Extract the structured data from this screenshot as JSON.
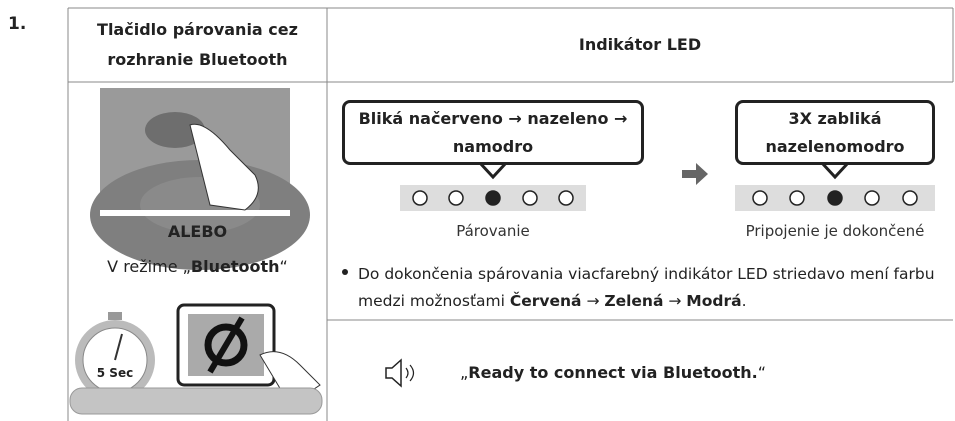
{
  "step": "1.",
  "table": {
    "headers": [
      "Tlačidlo párovania cez rozhranie Bluetooth",
      "Indikátor LED"
    ],
    "left": {
      "or": "ALEBO",
      "mode": [
        "V režime „",
        "Bluetooth",
        "“"
      ],
      "timer": "5 Sec"
    },
    "right": {
      "callouts": [
        {
          "text": "Bliká načerveno → nazeleno → namodro",
          "caption": "Párovanie"
        },
        {
          "text": "3X zabliká nazelenomodro",
          "caption": "Pripojenie je dokončené"
        }
      ],
      "note": [
        "Do dokončenia spárovania viacfarebný indikátor LED striedavo mení farbu medzi možnosťami ",
        "Červená",
        " → ",
        "Zelená",
        " → ",
        "Modrá",
        "."
      ],
      "voice": [
        "„",
        "Ready to connect via Bluetooth.",
        "“"
      ]
    }
  }
}
